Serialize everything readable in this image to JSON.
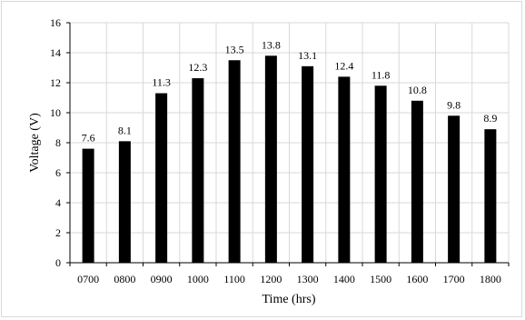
{
  "chart_data": {
    "type": "bar",
    "title": "",
    "xlabel": "Time (hrs)",
    "ylabel": "Voltage (V)",
    "categories": [
      "0700",
      "0800",
      "0900",
      "1000",
      "1100",
      "1200",
      "1300",
      "1400",
      "1500",
      "1600",
      "1700",
      "1800"
    ],
    "values": [
      7.6,
      8.1,
      11.3,
      12.3,
      13.5,
      13.8,
      13.1,
      12.4,
      11.8,
      10.8,
      9.8,
      8.9
    ],
    "data_labels": [
      "7.6",
      "8.1",
      "11.3",
      "12.3",
      "13.5",
      "13.8",
      "13.1",
      "12.4",
      "11.8",
      "10.8",
      "9.8",
      "8.9"
    ],
    "yticks": [
      "0",
      "2",
      "4",
      "6",
      "8",
      "10",
      "12",
      "14",
      "16"
    ],
    "ylim": [
      0,
      16
    ],
    "grid": true,
    "legend": "none",
    "colors": {
      "bar": "#000000",
      "grid": "#d9d9d9",
      "axis": "#000000"
    }
  }
}
